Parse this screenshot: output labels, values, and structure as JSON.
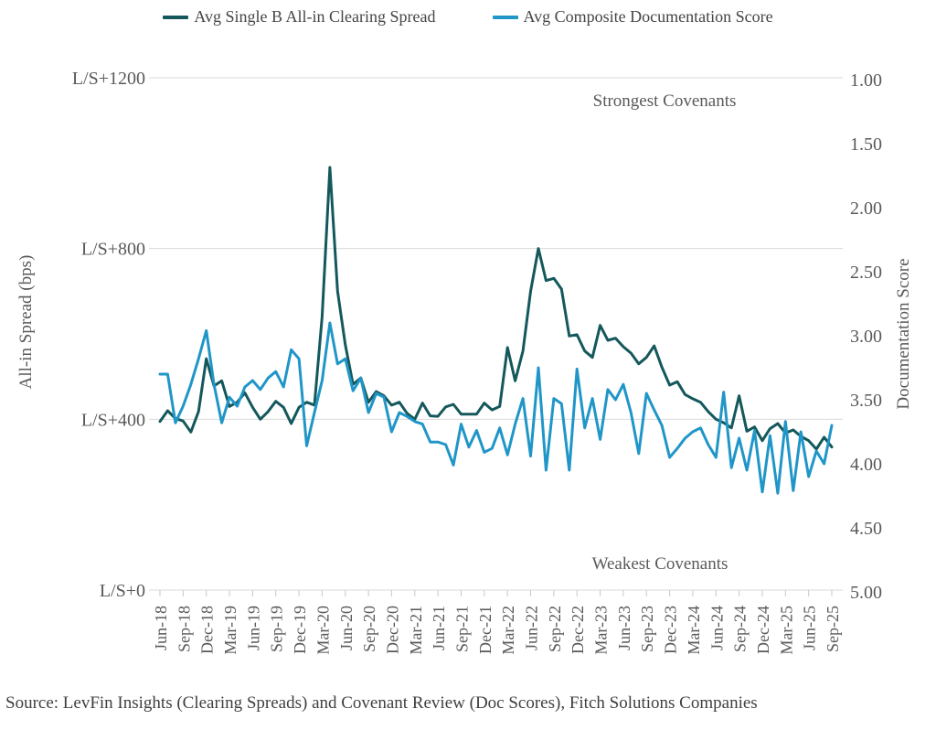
{
  "source": "Source: LevFin Insights (Clearing Spreads) and Covenant Review (Doc Scores), Fitch Solutions Companies",
  "chart_data": {
    "type": "line",
    "x_tick_labels": [
      "Jun-18",
      "Sep-18",
      "Dec-18",
      "Mar-19",
      "Jun-19",
      "Sep-19",
      "Dec-19",
      "Mar-20",
      "Jun-20",
      "Sep-20",
      "Dec-20",
      "Mar-21",
      "Jun-21",
      "Sep-21",
      "Dec-21",
      "Mar-22",
      "Jun-22",
      "Sep-22",
      "Dec-22",
      "Mar-23",
      "Jun-23",
      "Sep-23",
      "Dec-23",
      "Mar-24",
      "Jun-24",
      "Sep-24",
      "Dec-24",
      "Mar-25",
      "Jun-25",
      "Sep-25"
    ],
    "months_per_tick": 3,
    "frequency": "monthly",
    "x_range": [
      "Jun-18",
      "Sep-25"
    ],
    "legend_position": "top",
    "grid": "horizontal-on-left-axis-ticks",
    "annotations": {
      "top": "Strongest Covenants",
      "bottom": "Weakest Covenants"
    },
    "left_axis": {
      "title": "All-in Spread (bps)",
      "ticks": [
        "L/S+1200",
        "L/S+800",
        "L/S+400",
        "L/S+0"
      ],
      "tick_values": [
        1200,
        800,
        400,
        0
      ],
      "range": [
        0,
        1200
      ]
    },
    "right_axis": {
      "title": "Documentation Score",
      "ticks": [
        "1.00",
        "1.50",
        "2.00",
        "2.50",
        "3.00",
        "3.50",
        "4.00",
        "4.50",
        "5.00"
      ],
      "tick_values": [
        1.0,
        1.5,
        2.0,
        2.5,
        3.0,
        3.5,
        4.0,
        4.5,
        5.0
      ],
      "range": [
        1.0,
        5.0
      ],
      "inverted": true
    },
    "series": [
      {
        "name": "Avg Single B All-in Clearing Spread",
        "axis": "left",
        "color": "#14585c",
        "values": [
          395,
          420,
          402,
          396,
          370,
          418,
          542,
          478,
          490,
          430,
          440,
          462,
          428,
          400,
          418,
          442,
          428,
          390,
          428,
          440,
          433,
          640,
          990,
          700,
          574,
          482,
          497,
          440,
          465,
          455,
          433,
          440,
          414,
          400,
          438,
          408,
          407,
          429,
          435,
          412,
          412,
          412,
          438,
          422,
          430,
          568,
          490,
          560,
          700,
          800,
          725,
          730,
          705,
          595,
          598,
          560,
          545,
          620,
          585,
          590,
          570,
          555,
          530,
          545,
          572,
          522,
          480,
          488,
          458,
          448,
          440,
          418,
          400,
          392,
          380,
          455,
          372,
          382,
          350,
          378,
          390,
          368,
          375,
          360,
          350,
          330,
          358,
          335
        ]
      },
      {
        "name": "Avg Composite Documentation Score",
        "axis": "right",
        "color": "#2096c8",
        "values": [
          3.3,
          3.3,
          3.68,
          3.55,
          3.38,
          3.18,
          2.96,
          3.38,
          3.68,
          3.48,
          3.55,
          3.4,
          3.35,
          3.42,
          3.33,
          3.28,
          3.4,
          3.11,
          3.18,
          3.86,
          3.6,
          3.35,
          2.9,
          3.22,
          3.18,
          3.43,
          3.33,
          3.6,
          3.45,
          3.48,
          3.75,
          3.6,
          3.63,
          3.67,
          3.69,
          3.83,
          3.83,
          3.85,
          4.01,
          3.69,
          3.87,
          3.74,
          3.91,
          3.88,
          3.72,
          3.93,
          3.69,
          3.49,
          3.94,
          3.25,
          4.05,
          3.49,
          3.53,
          4.05,
          3.26,
          3.72,
          3.49,
          3.81,
          3.42,
          3.5,
          3.38,
          3.6,
          3.92,
          3.45,
          3.58,
          3.7,
          3.95,
          3.88,
          3.8,
          3.75,
          3.72,
          3.85,
          3.95,
          3.44,
          4.03,
          3.8,
          4.05,
          3.74,
          4.22,
          3.78,
          4.23,
          3.67,
          4.21,
          3.75,
          4.1,
          3.9,
          4.0,
          3.7
        ]
      }
    ]
  }
}
